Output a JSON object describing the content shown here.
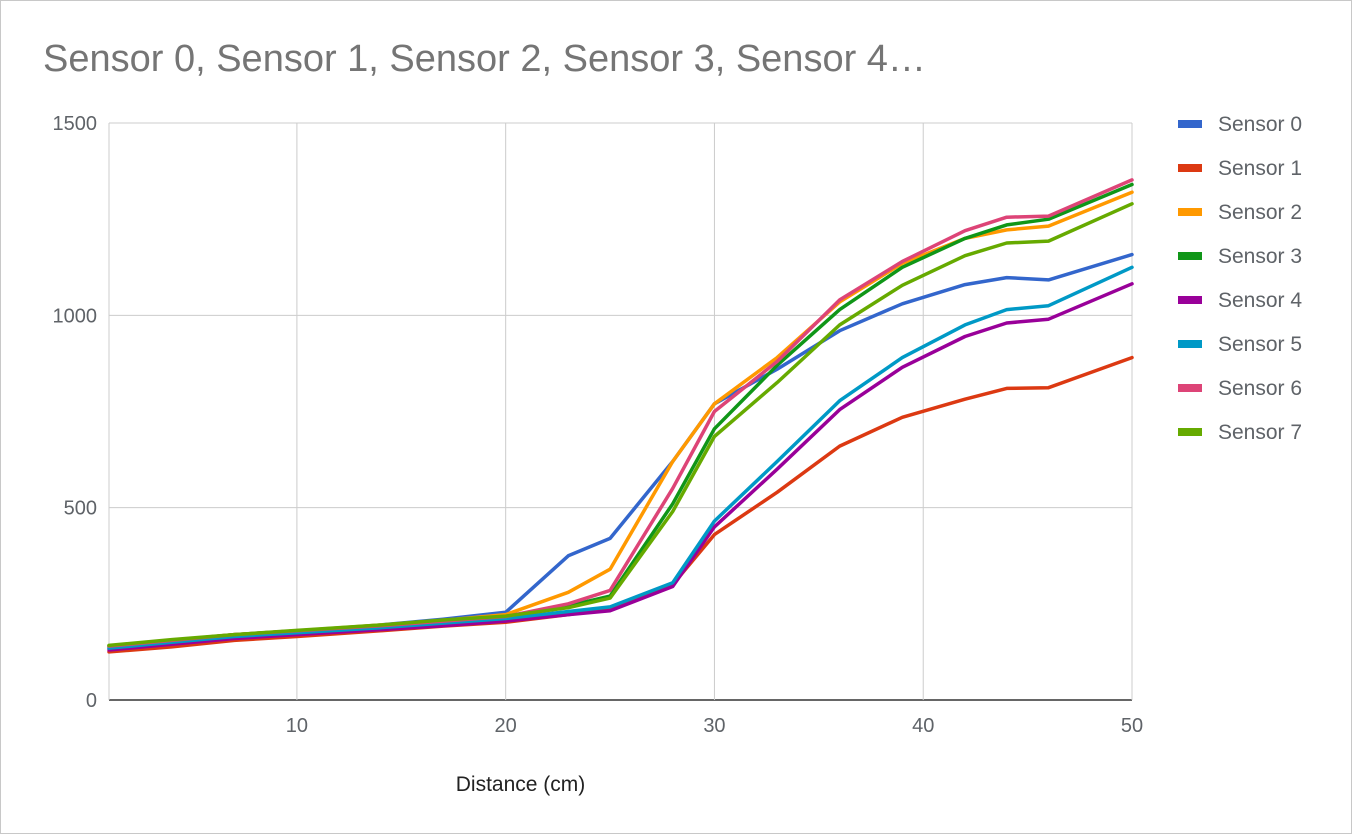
{
  "chart_data": {
    "type": "line",
    "title": "Sensor 0, Sensor 1, Sensor 2, Sensor 3, Sensor 4…",
    "xlabel": "Distance (cm)",
    "ylabel": "",
    "xlim": [
      1,
      50
    ],
    "ylim": [
      0,
      1500
    ],
    "xticks": [
      10,
      20,
      30,
      40,
      50
    ],
    "yticks": [
      0,
      500,
      1000,
      1500
    ],
    "grid": true,
    "legend_position": "right",
    "x": [
      1,
      4,
      7,
      10,
      14,
      17,
      20,
      23,
      25,
      28,
      30,
      33,
      36,
      39,
      42,
      44,
      46,
      50
    ],
    "series": [
      {
        "name": "Sensor 0",
        "color": "#3366cc",
        "values": [
          135,
          150,
          165,
          178,
          195,
          210,
          228,
          375,
          420,
          620,
          770,
          860,
          960,
          1030,
          1080,
          1098,
          1092,
          1158
        ]
      },
      {
        "name": "Sensor 1",
        "color": "#dc3912",
        "values": [
          125,
          138,
          155,
          165,
          180,
          192,
          202,
          222,
          238,
          300,
          430,
          540,
          660,
          735,
          782,
          810,
          812,
          890
        ]
      },
      {
        "name": "Sensor 2",
        "color": "#ff9900",
        "values": [
          140,
          155,
          170,
          180,
          195,
          207,
          222,
          280,
          340,
          620,
          770,
          890,
          1035,
          1135,
          1200,
          1222,
          1232,
          1320
        ]
      },
      {
        "name": "Sensor 3",
        "color": "#109618",
        "values": [
          140,
          155,
          170,
          180,
          193,
          205,
          215,
          245,
          270,
          510,
          705,
          870,
          1015,
          1125,
          1200,
          1235,
          1250,
          1340
        ]
      },
      {
        "name": "Sensor 4",
        "color": "#990099",
        "values": [
          130,
          145,
          160,
          170,
          183,
          193,
          205,
          222,
          232,
          295,
          450,
          600,
          755,
          865,
          945,
          980,
          990,
          1082
        ]
      },
      {
        "name": "Sensor 5",
        "color": "#0099c6",
        "values": [
          135,
          150,
          165,
          175,
          188,
          200,
          212,
          230,
          242,
          305,
          465,
          620,
          778,
          890,
          975,
          1015,
          1025,
          1125
        ]
      },
      {
        "name": "Sensor 6",
        "color": "#dd4477",
        "values": [
          140,
          155,
          170,
          180,
          193,
          205,
          217,
          250,
          285,
          550,
          750,
          880,
          1040,
          1140,
          1220,
          1255,
          1258,
          1352
        ]
      },
      {
        "name": "Sensor 7",
        "color": "#66aa00",
        "values": [
          142,
          157,
          170,
          181,
          195,
          208,
          218,
          240,
          265,
          490,
          685,
          825,
          975,
          1078,
          1155,
          1188,
          1193,
          1290
        ]
      }
    ]
  }
}
